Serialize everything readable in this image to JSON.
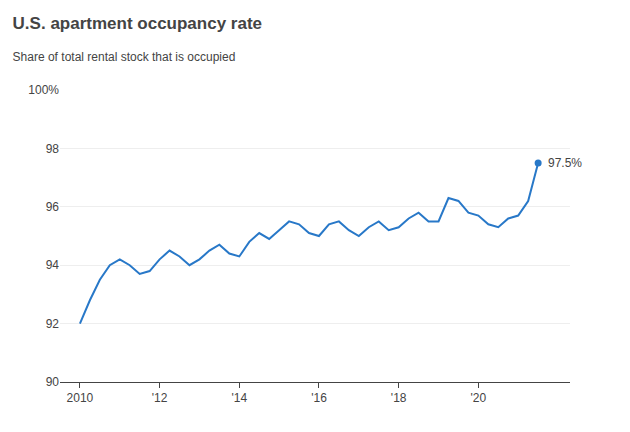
{
  "chart_data": {
    "type": "line",
    "title": "U.S. apartment occupancy rate",
    "subtitle": "Share of total rental stock that is occupied",
    "x": [
      2010.0,
      2010.25,
      2010.5,
      2010.75,
      2011.0,
      2011.25,
      2011.5,
      2011.75,
      2012.0,
      2012.25,
      2012.5,
      2012.75,
      2013.0,
      2013.25,
      2013.5,
      2013.75,
      2014.0,
      2014.25,
      2014.5,
      2014.75,
      2015.0,
      2015.25,
      2015.5,
      2015.75,
      2016.0,
      2016.25,
      2016.5,
      2016.75,
      2017.0,
      2017.25,
      2017.5,
      2017.75,
      2018.0,
      2018.25,
      2018.5,
      2018.75,
      2019.0,
      2019.25,
      2019.5,
      2019.75,
      2020.0,
      2020.25,
      2020.5,
      2020.75,
      2021.0,
      2021.25,
      2021.5
    ],
    "values": [
      92.0,
      92.8,
      93.5,
      94.0,
      94.2,
      94.0,
      93.7,
      93.8,
      94.2,
      94.5,
      94.3,
      94.0,
      94.2,
      94.5,
      94.7,
      94.4,
      94.3,
      94.8,
      95.1,
      94.9,
      95.2,
      95.5,
      95.4,
      95.1,
      95.0,
      95.4,
      95.5,
      95.2,
      95.0,
      95.3,
      95.5,
      95.2,
      95.3,
      95.6,
      95.8,
      95.5,
      95.5,
      96.3,
      96.2,
      95.8,
      95.7,
      95.4,
      95.3,
      95.6,
      95.7,
      96.2,
      97.5
    ],
    "color": "#2878c8",
    "annotations": [
      "97.5%"
    ],
    "xlim": [
      2009.5,
      2022.3
    ],
    "xticks": [
      2010,
      {
        "value": 2012,
        "label": "'12"
      },
      {
        "value": 2014,
        "label": "'14"
      },
      {
        "value": 2016,
        "label": "'16"
      },
      {
        "value": 2018,
        "label": "'18"
      },
      {
        "value": 2020,
        "label": "'20"
      }
    ],
    "ylim": [
      90,
      100
    ],
    "yticks": [
      90,
      92,
      94,
      96,
      98,
      {
        "value": 100,
        "label": "100%"
      }
    ],
    "grid": true
  }
}
